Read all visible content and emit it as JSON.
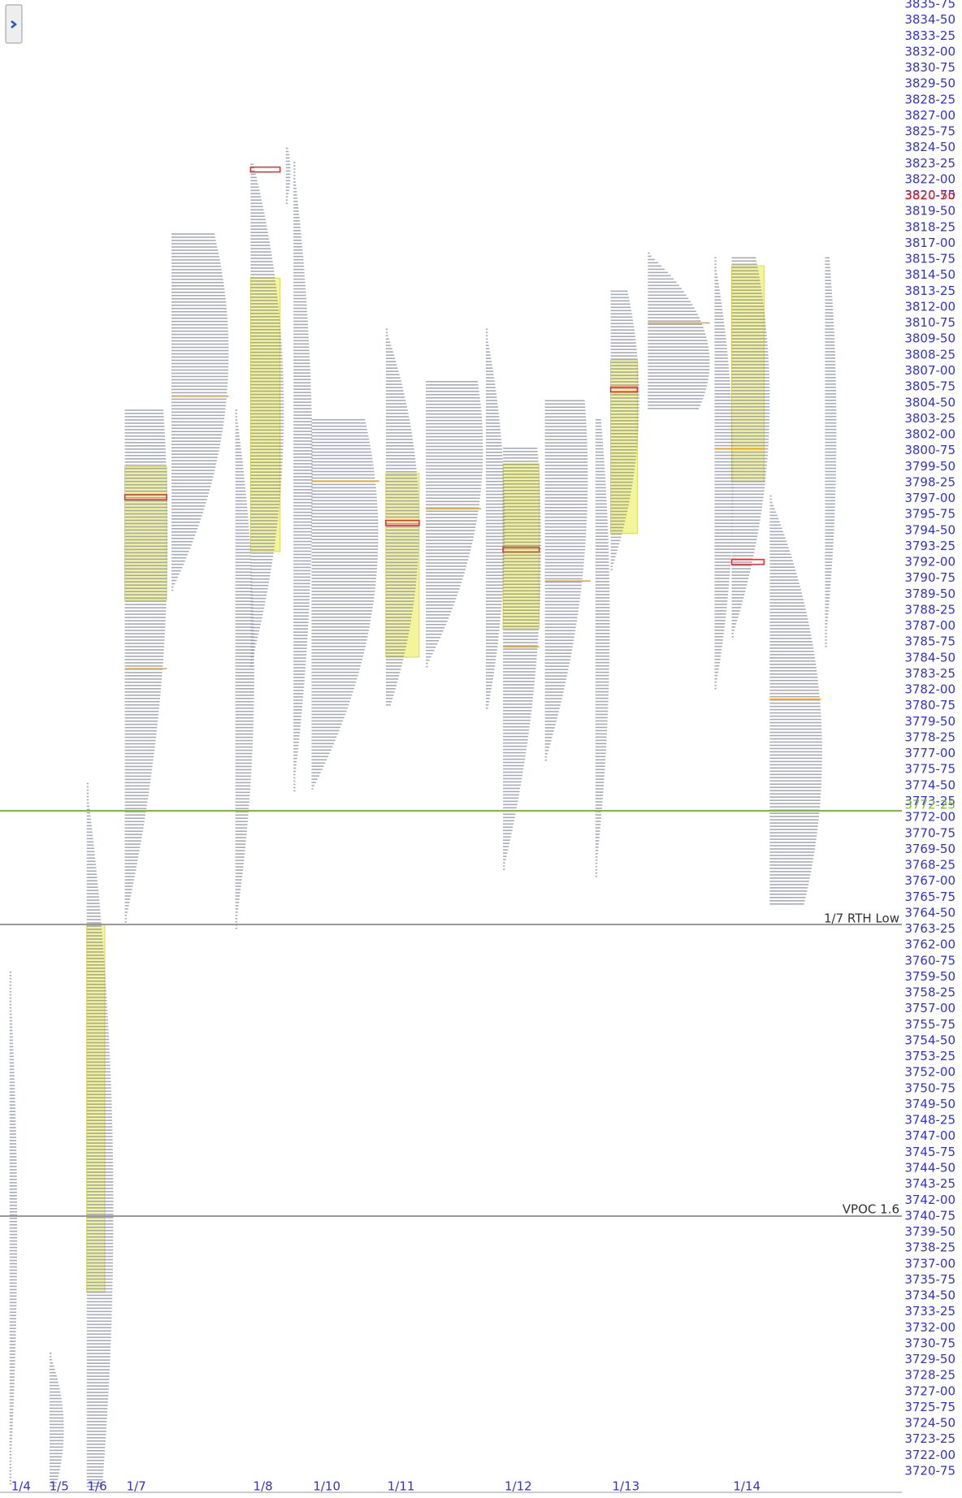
{
  "price_axis": {
    "labels": [
      "3835-75",
      "3834-50",
      "3833-25",
      "3832-00",
      "3830-75",
      "3829-50",
      "3828-25",
      "3827-00",
      "3825-75",
      "3824-50",
      "3823-25",
      "3822-00",
      "3820-75",
      "3819-50",
      "3818-25",
      "3817-00",
      "3815-75",
      "3814-50",
      "3813-25",
      "3812-00",
      "3810-75",
      "3809-50",
      "3808-25",
      "3807-00",
      "3805-75",
      "3804-50",
      "3803-25",
      "3802-00",
      "3800-75",
      "3799-50",
      "3798-25",
      "3797-00",
      "3795-75",
      "3794-50",
      "3793-25",
      "3792-00",
      "3790-75",
      "3789-50",
      "3788-25",
      "3787-00",
      "3785-75",
      "3784-50",
      "3783-25",
      "3782-00",
      "3780-75",
      "3779-50",
      "3778-25",
      "3777-00",
      "3775-75",
      "3774-50",
      "3773-25",
      "3772-00",
      "3770-75",
      "3769-50",
      "3768-25",
      "3767-00",
      "3765-75",
      "3764-50",
      "3763-25",
      "3762-00",
      "3760-75",
      "3759-50",
      "3758-25",
      "3757-00",
      "3755-75",
      "3754-50",
      "3753-25",
      "3752-00",
      "3750-75",
      "3749-50",
      "3748-25",
      "3747-00",
      "3745-75",
      "3744-50",
      "3743-25",
      "3742-00",
      "3740-75",
      "3739-50",
      "3738-25",
      "3737-00",
      "3735-75",
      "3734-50",
      "3733-25",
      "3732-00",
      "3730-75",
      "3729-50",
      "3728-25",
      "3727-00",
      "3725-75",
      "3724-50",
      "3723-25",
      "3722-00",
      "3720-75"
    ]
  },
  "price_markers": [
    {
      "label": "3820-50"
    },
    {
      "label": "3772-25"
    }
  ],
  "date_axis": {
    "labels": [
      "1/4",
      "1/5",
      "1/6",
      "1/7",
      "1/8",
      "1/10",
      "1/11",
      "1/12",
      "1/13",
      "1/14"
    ]
  },
  "levels": [
    {
      "label": "1/7 RTH Low"
    },
    {
      "label": "VPOC 1.6"
    }
  ]
}
